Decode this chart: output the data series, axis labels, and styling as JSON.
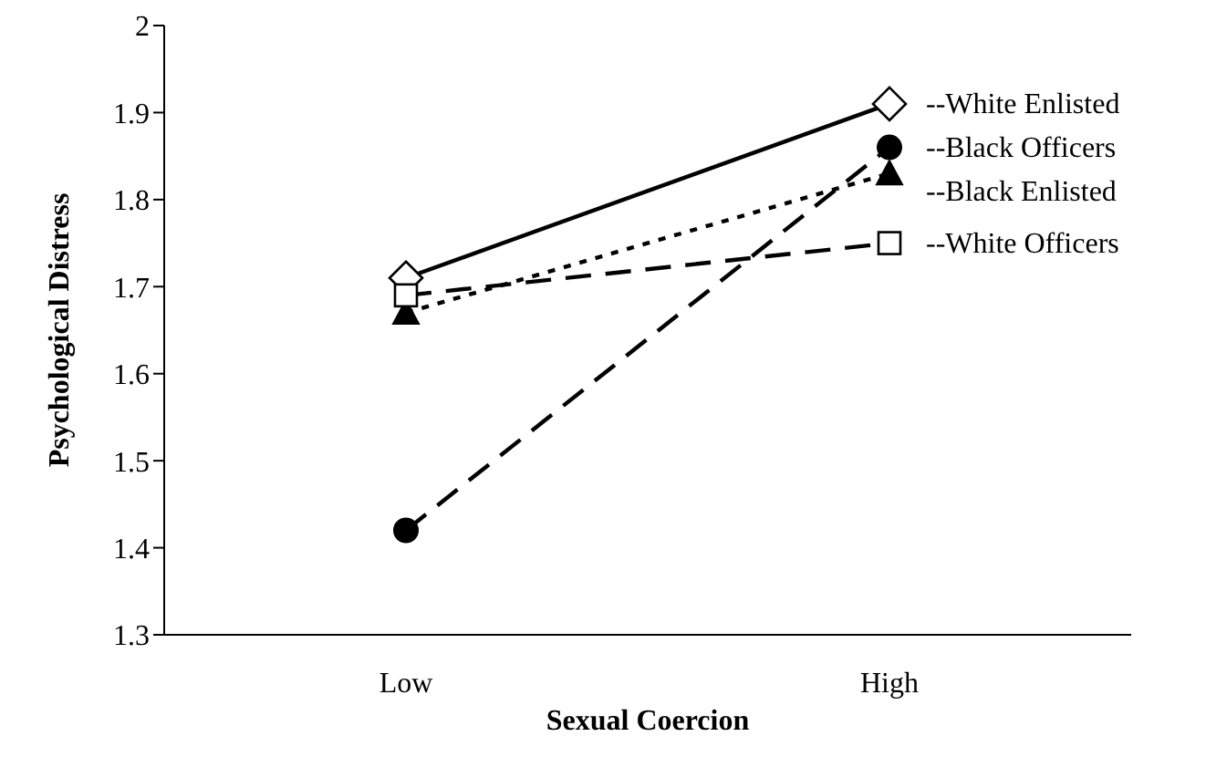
{
  "chart_data": {
    "type": "line",
    "xlabel": "Sexual Coercion",
    "ylabel": "Psychological Distress",
    "categories": [
      "Low",
      "High"
    ],
    "series": [
      {
        "name": "--White Enlisted",
        "color": "#000000",
        "values": [
          1.71,
          1.91
        ],
        "marker": "diamond",
        "line_style": "solid"
      },
      {
        "name": "--Black Officers",
        "color": "#000000",
        "values": [
          1.42,
          1.86
        ],
        "marker": "circle",
        "line_style": "dashed"
      },
      {
        "name": "--Black Enlisted",
        "color": "#000000",
        "values": [
          1.67,
          1.83
        ],
        "marker": "triangle",
        "line_style": "dotted"
      },
      {
        "name": "--White Officers",
        "color": "#000000",
        "values": [
          1.69,
          1.75
        ],
        "marker": "square",
        "line_style": "dashed"
      }
    ],
    "ylim": [
      1.3,
      2
    ],
    "yticks": [
      1.3,
      1.4,
      1.5,
      1.6,
      1.7,
      1.8,
      1.9,
      2
    ],
    "grid": false
  }
}
